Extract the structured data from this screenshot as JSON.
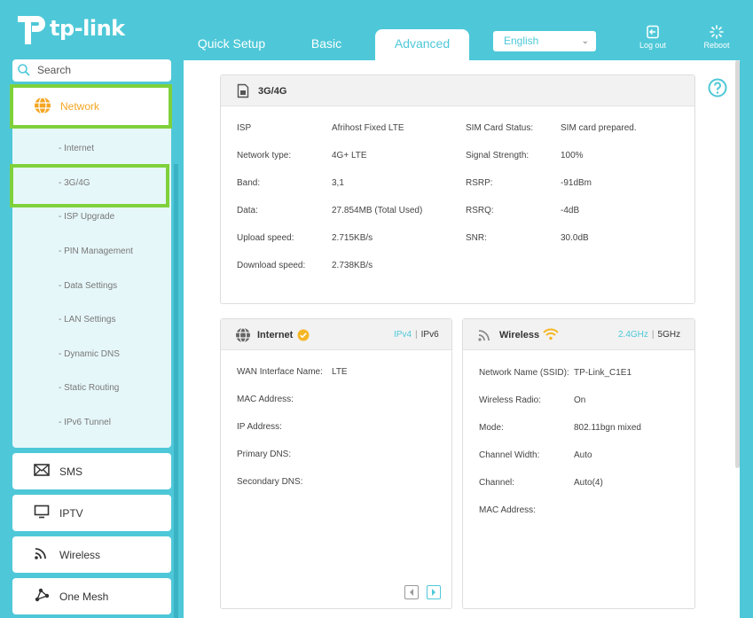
{
  "brand": {
    "name": "tp-link"
  },
  "tabs": [
    {
      "label": "Quick Setup"
    },
    {
      "label": "Basic"
    },
    {
      "label": "Advanced"
    }
  ],
  "language": {
    "selected": "English"
  },
  "header_buttons": {
    "logout": "Log out",
    "reboot": "Reboot"
  },
  "search": {
    "placeholder": "Search"
  },
  "sidebar": {
    "network": {
      "label": "Network",
      "icon": "globe-icon"
    },
    "subitems": [
      "- Internet",
      "- 3G/4G",
      "- ISP Upgrade",
      "- PIN Management",
      "- Data Settings",
      "- LAN Settings",
      "- Dynamic DNS",
      "- Static Routing",
      "- IPv6 Tunnel"
    ],
    "menu": [
      {
        "label": "SMS",
        "icon": "envelope-icon"
      },
      {
        "label": "IPTV",
        "icon": "monitor-icon"
      },
      {
        "label": "Wireless",
        "icon": "signal-icon"
      },
      {
        "label": "One Mesh",
        "icon": "mesh-icon"
      }
    ]
  },
  "card_3g4g": {
    "title": "3G/4G",
    "left": [
      {
        "label": "ISP",
        "value": "Afrihost Fixed LTE"
      },
      {
        "label": "Network type:",
        "value": "4G+ LTE"
      },
      {
        "label": "Band:",
        "value": "3,1"
      },
      {
        "label": "Data:",
        "value": "27.854MB (Total Used)"
      },
      {
        "label": "Upload speed:",
        "value": "2.715KB/s"
      },
      {
        "label": "Download speed:",
        "value": "2.738KB/s"
      }
    ],
    "right": [
      {
        "label": "SIM Card Status:",
        "value": "SIM card prepared."
      },
      {
        "label": "Signal Strength:",
        "value": "100%"
      },
      {
        "label": "RSRP:",
        "value": "-91dBm"
      },
      {
        "label": "RSRQ:",
        "value": "-4dB"
      },
      {
        "label": "SNR:",
        "value": "30.0dB"
      }
    ]
  },
  "card_internet": {
    "title": "Internet",
    "ipv4": "IPv4",
    "ipv6": "IPv6",
    "rows": [
      {
        "label": "WAN Interface Name:",
        "value": "LTE"
      },
      {
        "label": "MAC Address:",
        "value": ""
      },
      {
        "label": "IP Address:",
        "value": ""
      },
      {
        "label": "Primary DNS:",
        "value": ""
      },
      {
        "label": "Secondary DNS:",
        "value": ""
      }
    ]
  },
  "card_wireless": {
    "title": "Wireless",
    "band24": "2.4GHz",
    "band5": "5GHz",
    "rows": [
      {
        "label": "Network Name (SSID):",
        "value": "TP-Link_C1E1"
      },
      {
        "label": "Wireless Radio:",
        "value": "On"
      },
      {
        "label": "Mode:",
        "value": "802.11bgn mixed"
      },
      {
        "label": "Channel Width:",
        "value": "Auto"
      },
      {
        "label": "Channel:",
        "value": "Auto(4)"
      },
      {
        "label": "MAC Address:",
        "value": ""
      }
    ]
  },
  "colors": {
    "accent": "#4ec8d8",
    "highlight": "#7fd13b",
    "network": "#f5a623"
  }
}
